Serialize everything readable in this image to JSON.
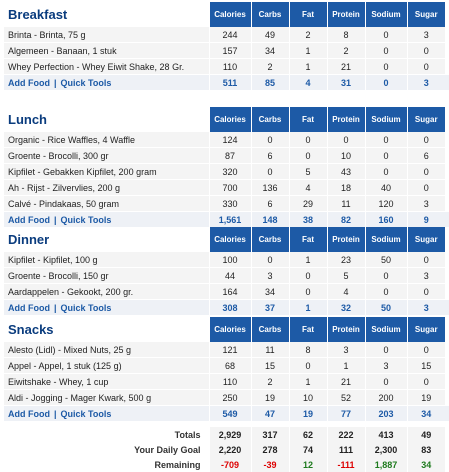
{
  "columns": [
    "Calories",
    "Carbs",
    "Fat",
    "Protein",
    "Sodium",
    "Sugar"
  ],
  "add_food_label": "Add Food",
  "quick_tools_label": "Quick Tools",
  "separator": "|",
  "meals": [
    {
      "title": "Breakfast",
      "foods": [
        {
          "name": "Brinta - Brinta, 75 g",
          "values": [
            "244",
            "49",
            "2",
            "8",
            "0",
            "3"
          ]
        },
        {
          "name": "Algemeen - Banaan, 1 stuk",
          "values": [
            "157",
            "34",
            "1",
            "2",
            "0",
            "0"
          ]
        },
        {
          "name": "Whey Perfection - Whey Eiwit Shake, 28 Gr.",
          "values": [
            "110",
            "2",
            "1",
            "21",
            "0",
            "0"
          ]
        }
      ],
      "totals": [
        "511",
        "85",
        "4",
        "31",
        "0",
        "3"
      ]
    },
    {
      "title": "Lunch",
      "foods": [
        {
          "name": "Organic - Rice Waffles, 4 Waffle",
          "values": [
            "124",
            "0",
            "0",
            "0",
            "0",
            "0"
          ]
        },
        {
          "name": "Groente - Brocolli, 300 gr",
          "values": [
            "87",
            "6",
            "0",
            "10",
            "0",
            "6"
          ]
        },
        {
          "name": "Kipfilet - Gebakken Kipfilet, 200 gram",
          "values": [
            "320",
            "0",
            "5",
            "43",
            "0",
            "0"
          ]
        },
        {
          "name": "Ah - Rijst - Zilvervlies, 200 g",
          "values": [
            "700",
            "136",
            "4",
            "18",
            "40",
            "0"
          ]
        },
        {
          "name": "Calvé - Pindakaas, 50 gram",
          "values": [
            "330",
            "6",
            "29",
            "11",
            "120",
            "3"
          ]
        }
      ],
      "totals": [
        "1,561",
        "148",
        "38",
        "82",
        "160",
        "9"
      ]
    },
    {
      "title": "Dinner",
      "foods": [
        {
          "name": "Kipfilet - Kipfilet, 100 g",
          "values": [
            "100",
            "0",
            "1",
            "23",
            "50",
            "0"
          ]
        },
        {
          "name": "Groente - Brocolli, 150 gr",
          "values": [
            "44",
            "3",
            "0",
            "5",
            "0",
            "3"
          ]
        },
        {
          "name": "Aardappelen - Gekookt, 200 gr.",
          "values": [
            "164",
            "34",
            "0",
            "4",
            "0",
            "0"
          ]
        }
      ],
      "totals": [
        "308",
        "37",
        "1",
        "32",
        "50",
        "3"
      ]
    },
    {
      "title": "Snacks",
      "foods": [
        {
          "name": "Alesto (Lidl) - Mixed Nuts, 25 g",
          "values": [
            "121",
            "11",
            "8",
            "3",
            "0",
            "0"
          ]
        },
        {
          "name": "Appel - Appel, 1 stuk (125 g)",
          "values": [
            "68",
            "15",
            "0",
            "1",
            "3",
            "15"
          ]
        },
        {
          "name": "Eiwitshake - Whey, 1 cup",
          "values": [
            "110",
            "2",
            "1",
            "21",
            "0",
            "0"
          ]
        },
        {
          "name": "Aldi - Jogging - Mager Kwark, 500 g",
          "values": [
            "250",
            "19",
            "10",
            "52",
            "200",
            "19"
          ]
        }
      ],
      "totals": [
        "549",
        "47",
        "19",
        "77",
        "203",
        "34"
      ]
    }
  ],
  "summary": {
    "totals": {
      "label": "Totals",
      "values": [
        "2,929",
        "317",
        "62",
        "222",
        "413",
        "49"
      ]
    },
    "goal": {
      "label": "Your Daily Goal",
      "values": [
        "2,220",
        "278",
        "74",
        "111",
        "2,300",
        "83"
      ]
    },
    "remaining": {
      "label": "Remaining",
      "values": [
        "-709",
        "-39",
        "12",
        "-111",
        "1,887",
        "34"
      ]
    }
  },
  "colors": {
    "accent": "#1d5aa6",
    "title": "#0a3c7e",
    "negative": "#dd0000",
    "positive": "#1d7a1d"
  }
}
